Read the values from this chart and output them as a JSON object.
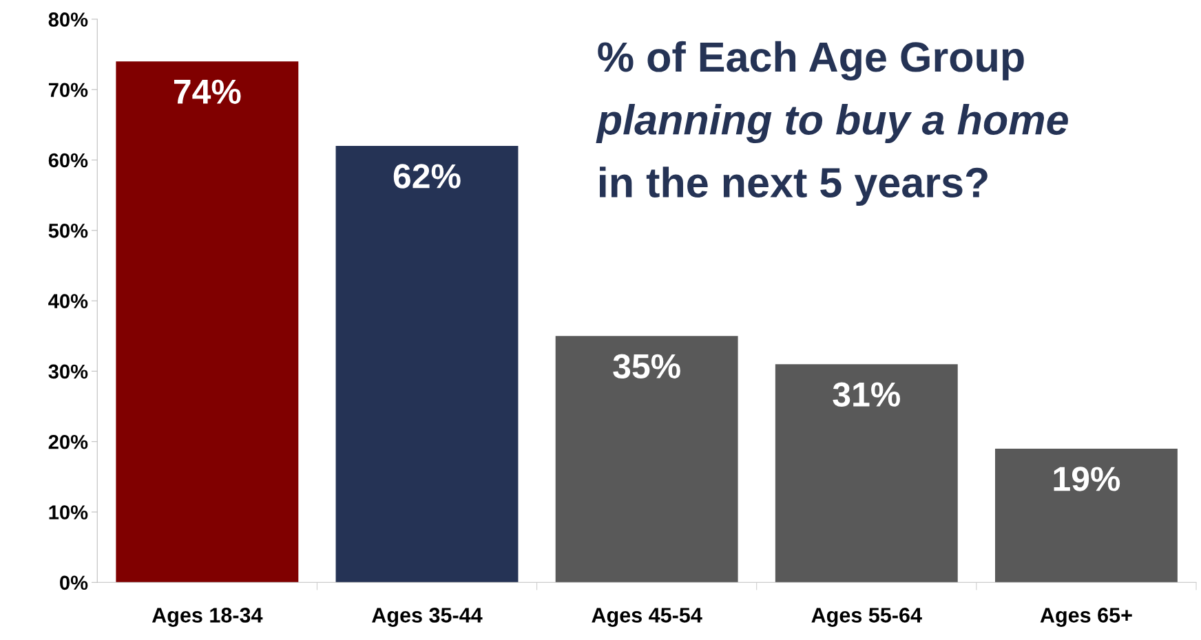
{
  "chart_data": {
    "type": "bar",
    "title": "% of Each Age Group\nplanning to buy a home\nin the next 5 years?",
    "categories": [
      "Ages 18-34",
      "Ages 35-44",
      "Ages 45-54",
      "Ages 55-64",
      "Ages 65+"
    ],
    "values": [
      74,
      62,
      35,
      31,
      19
    ],
    "colors": [
      "#800000",
      "#253355",
      "#595959",
      "#595959",
      "#595959"
    ],
    "value_labels": [
      "74%",
      "62%",
      "35%",
      "31%",
      "19%"
    ],
    "ylim": [
      0,
      80
    ],
    "yticks": [
      {
        "value": 0,
        "label": "0%"
      },
      {
        "value": 10,
        "label": "10%"
      },
      {
        "value": 20,
        "label": "20%"
      },
      {
        "value": 30,
        "label": "30%"
      },
      {
        "value": 40,
        "label": "40%"
      },
      {
        "value": 50,
        "label": "50%"
      },
      {
        "value": 60,
        "label": "60%"
      },
      {
        "value": 70,
        "label": "70%"
      },
      {
        "value": 80,
        "label": "80%"
      }
    ],
    "grid": false,
    "legend": false
  }
}
